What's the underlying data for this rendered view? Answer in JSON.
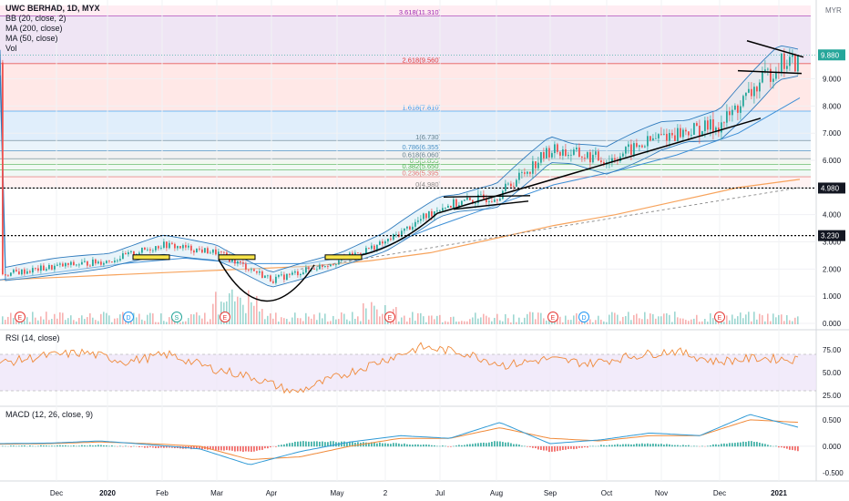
{
  "header": {
    "symbol": "UWC BERHAD, 1D, MYX",
    "indicators": [
      "BB (20, close, 2)",
      "MA (200, close)",
      "MA (50, close)",
      "Vol"
    ],
    "currency": "MYR"
  },
  "rsi_label": "RSI (14, close)",
  "macd_label": "MACD (12, 26, close, 9)",
  "colors": {
    "up": "#26a69a",
    "down": "#ef5350",
    "ma200": "#f7a35c",
    "bb": "#2f7bbd",
    "fib_1": "#ffe0df",
    "fib_2": "#eadcf0",
    "fib_3": "#d5e8fa",
    "rsi_line": "#f08a3a",
    "rsi_band": "#ede2f8",
    "macd_line": "#2f9ad6",
    "signal_line": "#f08a3a"
  },
  "chart_data": [
    {
      "type": "candlestick",
      "title": "UWC BERHAD, 1D, MYX",
      "ylabel": "MYR",
      "ylim": [
        0,
        11.7
      ],
      "x_ticks": [
        "Dec",
        "2020",
        "Feb",
        "Mar",
        "Apr",
        "May",
        "2",
        "Jul",
        "Aug",
        "Sep",
        "Oct",
        "Nov",
        "Dec",
        "2021"
      ],
      "y_ticks": [
        "0.000",
        "1.000",
        "2.000",
        "3.000",
        "4.000",
        "5.000",
        "6.000",
        "7.000",
        "8.000",
        "9.000"
      ],
      "last_price": "9.880",
      "horizontal_levels": [
        {
          "label": "4.980",
          "value": 4.98
        },
        {
          "label": "3.230",
          "value": 3.23
        }
      ],
      "fibonacci_levels": [
        {
          "label": "3.618(11.310)",
          "value": 11.31
        },
        {
          "label": "2.618(9.560)",
          "value": 9.56
        },
        {
          "label": "1.618(7.810)",
          "value": 7.81
        },
        {
          "label": "1(6.730)",
          "value": 6.73
        },
        {
          "label": "0.786(6.355)",
          "value": 6.355
        },
        {
          "label": "0.618(6.060)",
          "value": 6.06
        },
        {
          "label": "0.5(5.855)",
          "value": 5.855
        },
        {
          "label": "0.382(5.650)",
          "value": 5.65
        },
        {
          "label": "0.236(5.395)",
          "value": 5.395
        },
        {
          "label": "0(4.980)",
          "value": 4.98
        }
      ],
      "events": [
        "E",
        "D",
        "S",
        "E",
        "E",
        "E",
        "D",
        "E"
      ],
      "close_points": [
        [
          "Nov",
          1.8
        ],
        [
          "Dec",
          2.1
        ],
        [
          "2020",
          2.3
        ],
        [
          "Feb",
          2.9
        ],
        [
          "Mar",
          2.6
        ],
        [
          "Apr",
          1.6
        ],
        [
          "May",
          2.3
        ],
        [
          "2",
          3.0
        ],
        [
          "Jul",
          4.3
        ],
        [
          "Aug",
          4.7
        ],
        [
          "Sep",
          6.4
        ],
        [
          "Oct",
          6.0
        ],
        [
          "Nov",
          6.9
        ],
        [
          "Dec",
          7.3
        ],
        [
          "2021",
          9.6
        ]
      ],
      "series": [
        {
          "name": "MA (200, close)",
          "values": [
            1.6,
            1.7,
            1.8,
            1.9,
            2.0,
            2.1,
            2.3,
            2.6,
            3.1,
            3.6,
            4.0,
            4.5,
            5.0,
            5.3
          ]
        },
        {
          "name": "MA (50, close)",
          "values": [
            1.6,
            1.9,
            2.2,
            2.4,
            2.2,
            2.2,
            2.6,
            3.5,
            4.3,
            5.1,
            5.6,
            6.2,
            7.0,
            8.3
          ]
        }
      ]
    },
    {
      "type": "line",
      "title": "RSI (14, close)",
      "y_ticks": [
        "25.00",
        "50.00",
        "75.00"
      ],
      "band": [
        30,
        70
      ],
      "ylim": [
        15,
        95
      ],
      "values": [
        60,
        68,
        72,
        62,
        70,
        55,
        45,
        28,
        45,
        62,
        78,
        72,
        58,
        65,
        60,
        68,
        74,
        62,
        66,
        64
      ]
    },
    {
      "type": "line",
      "title": "MACD (12, 26, close, 9)",
      "y_ticks": [
        "0.500",
        "0.000",
        "-0.500"
      ],
      "ylim": [
        -0.62,
        0.72
      ],
      "series": [
        {
          "name": "MACD",
          "values": [
            0.05,
            0.06,
            0.1,
            0.03,
            -0.05,
            -0.35,
            -0.1,
            0.08,
            0.2,
            0.15,
            0.45,
            0.05,
            0.12,
            0.25,
            0.2,
            0.6,
            0.35
          ]
        },
        {
          "name": "Signal",
          "values": [
            0.04,
            0.05,
            0.08,
            0.05,
            0.0,
            -0.25,
            -0.2,
            0.0,
            0.15,
            0.15,
            0.35,
            0.15,
            0.1,
            0.2,
            0.2,
            0.5,
            0.45
          ]
        }
      ]
    }
  ]
}
